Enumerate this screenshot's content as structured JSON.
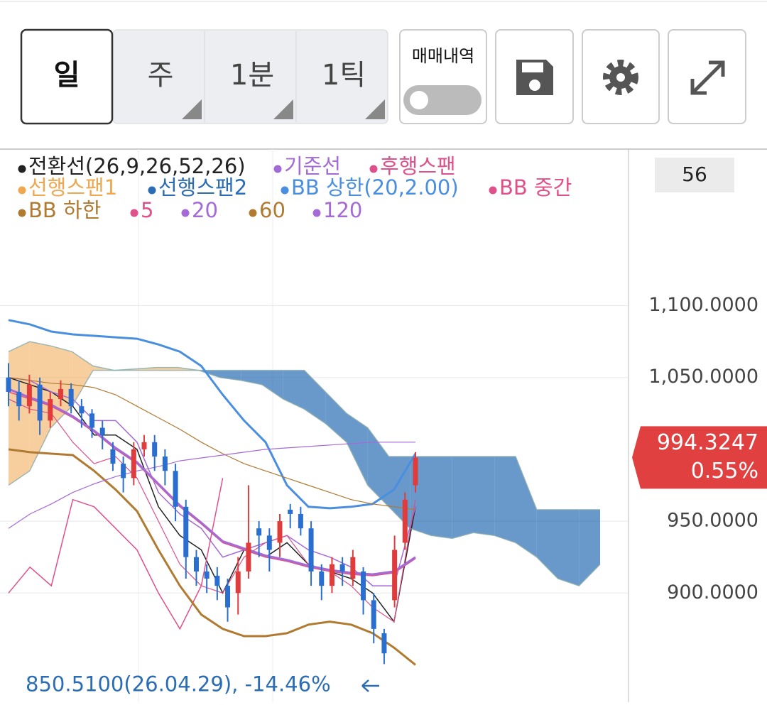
{
  "toolbar": {
    "periods": [
      "일",
      "주",
      "1분",
      "1틱"
    ],
    "trade_history": "매매내역"
  },
  "visible_count": 56,
  "chart_data": {
    "type": "candlestick",
    "ylim": [
      826,
      1208
    ],
    "yticks": [
      {
        "value": 1100,
        "label": "1,100.0000"
      },
      {
        "value": 1050,
        "label": "1,050.0000"
      },
      {
        "value": 950,
        "label": "950.0000"
      },
      {
        "value": 900,
        "label": "900.0000"
      }
    ],
    "grid": true,
    "up_color": "#e03c3c",
    "down_color": "#2a6fd0",
    "open": [
      1050,
      1040,
      1030,
      1045,
      1020,
      1035,
      1042,
      1030,
      1025,
      1015,
      1000,
      990,
      980,
      1000,
      1005,
      995,
      985,
      960,
      925,
      915,
      912,
      905,
      900,
      915,
      945,
      940,
      935,
      958,
      955,
      945,
      915,
      905,
      920,
      910,
      915,
      895,
      872,
      895,
      935,
      975
    ],
    "high": [
      1060,
      1048,
      1052,
      1050,
      1040,
      1048,
      1046,
      1035,
      1028,
      1020,
      1005,
      995,
      1005,
      1010,
      1010,
      1000,
      990,
      965,
      930,
      920,
      918,
      910,
      925,
      975,
      950,
      945,
      955,
      962,
      960,
      950,
      920,
      925,
      925,
      930,
      918,
      900,
      875,
      940,
      970,
      998
    ],
    "low": [
      1030,
      1020,
      1025,
      1010,
      1015,
      1030,
      1025,
      1015,
      1008,
      1000,
      985,
      970,
      975,
      995,
      985,
      975,
      950,
      910,
      905,
      900,
      895,
      880,
      885,
      910,
      925,
      915,
      925,
      945,
      940,
      905,
      895,
      900,
      905,
      905,
      885,
      865,
      850.51,
      890,
      930,
      970
    ],
    "close": [
      1040,
      1030,
      1045,
      1020,
      1035,
      1042,
      1030,
      1025,
      1015,
      1010,
      990,
      980,
      1000,
      1005,
      995,
      985,
      960,
      925,
      915,
      910,
      905,
      890,
      915,
      935,
      940,
      930,
      950,
      955,
      945,
      915,
      905,
      920,
      915,
      925,
      895,
      875,
      858,
      930,
      965,
      994.3247
    ],
    "series": [
      {
        "name": "전환선(26,9,26,52,26)",
        "color": "#222222",
        "line_width": 1.5,
        "values": [
          1050,
          1045,
          1040,
          1030,
          1010,
          1010,
          1000,
          960,
          940,
          930,
          900,
          930,
          925,
          935,
          920,
          915,
          910,
          900,
          880,
          960
        ]
      },
      {
        "name": "기준선",
        "color": "#a46ad6",
        "line_width": 1.5,
        "values": [
          1050,
          1048,
          1040,
          1035,
          1020,
          1020,
          1005,
          970,
          955,
          945,
          925,
          930,
          935,
          940,
          930,
          925,
          918,
          905,
          905,
          960
        ]
      },
      {
        "name": "후행스팬",
        "color": "#e0508a",
        "line_width": 1.5,
        "values": [
          900,
          918,
          905,
          965,
          960,
          945,
          930,
          900,
          875,
          905,
          980
        ]
      },
      {
        "name": "선행스팬1",
        "color": "#f0a850",
        "line_width": 1.5,
        "span": true,
        "values": [
          1068,
          1075,
          1072,
          1068,
          1058,
          1055,
          1056,
          1057,
          1057,
          1055,
          1050,
          1048,
          1045,
          1035,
          1028,
          1018,
          1005,
          975,
          960,
          945,
          940,
          938,
          942,
          940,
          935,
          925,
          910,
          905,
          920
        ]
      },
      {
        "name": "선행스팬2",
        "color": "#2a6db5",
        "line_width": 1.5,
        "span": true,
        "values": [
          975,
          985,
          1015,
          1030,
          1055,
          1055,
          1055,
          1055,
          1055,
          1055,
          1055,
          1055,
          1055,
          1055,
          1055,
          1040,
          1025,
          1015,
          995,
          995,
          995,
          995,
          995,
          995,
          995,
          958,
          958,
          958,
          958
        ]
      },
      {
        "name": "BB 상한(20,2.00)",
        "color": "#4a8ee0",
        "line_width": 3,
        "values": [
          1090,
          1087,
          1082,
          1080,
          1079,
          1078,
          1077,
          1073,
          1068,
          1058,
          1038,
          1020,
          1005,
          975,
          960,
          959,
          960,
          962,
          972,
          997
        ]
      },
      {
        "name": "BB 중간",
        "color": "#e0508a",
        "line_width": 1.5,
        "values": [
          1040,
          1035,
          1030,
          1022,
          1012,
          1000,
          990,
          975,
          960,
          948,
          935,
          930,
          925,
          922,
          918,
          915,
          913,
          912,
          914,
          924
        ]
      },
      {
        "name": "BB 하한",
        "color": "#b07a30",
        "line_width": 3,
        "values": [
          1000,
          998,
          997,
          996,
          985,
          972,
          957,
          930,
          905,
          885,
          875,
          870,
          870,
          872,
          878,
          880,
          878,
          872,
          862,
          850
        ]
      },
      {
        "name": "5",
        "color": "#e0508a",
        "line_width": 1.2,
        "values": [
          1035,
          1028,
          1025,
          1005,
          990,
          995,
          980,
          950,
          920,
          905,
          900,
          925,
          935,
          940,
          920,
          915,
          905,
          890,
          880,
          965
        ]
      },
      {
        "name": "20",
        "color": "#a46ad6",
        "line_width": 3,
        "values": [
          1042,
          1036,
          1031,
          1023,
          1013,
          1001,
          991,
          976,
          961,
          949,
          936,
          931,
          926,
          923,
          919,
          916,
          914,
          913,
          915,
          925
        ]
      },
      {
        "name": "60",
        "color": "#b07a30",
        "line_width": 1.2,
        "values": [
          1050,
          1048,
          1046,
          1045,
          1043,
          1038,
          1030,
          1022,
          1014,
          1005,
          997,
          990,
          985,
          980,
          975,
          970,
          965,
          962,
          960,
          958
        ]
      },
      {
        "name": "120",
        "color": "#a46ad6",
        "line_width": 1.2,
        "values": [
          945,
          955,
          962,
          970,
          976,
          981,
          985,
          988,
          992,
          994,
          996,
          998,
          1000,
          1001,
          1002,
          1003,
          1004,
          1005,
          1005,
          1005
        ]
      }
    ],
    "price_marker": {
      "value": 994.3247,
      "change": {
        "value": 0.55,
        "label": "0.55%"
      }
    },
    "min_marker": {
      "value": 850.51,
      "label": "850.5100(26.04.29), -14.46%"
    }
  }
}
